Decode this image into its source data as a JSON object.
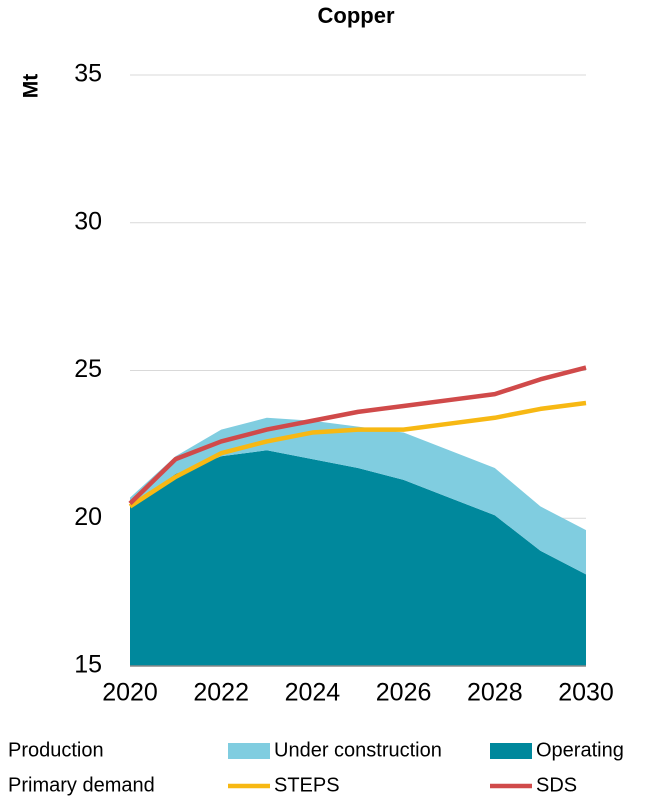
{
  "chart_data": {
    "type": "combo",
    "title": "Copper",
    "y_label": "Mt",
    "x": [
      2020,
      2021,
      2022,
      2023,
      2024,
      2025,
      2026,
      2027,
      2028,
      2029,
      2030
    ],
    "xlim": [
      2020,
      2030
    ],
    "xticks": [
      2020,
      2022,
      2024,
      2026,
      2028,
      2030
    ],
    "ylim": [
      15,
      35
    ],
    "yticks": [
      15,
      20,
      25,
      30,
      35
    ],
    "grid": true,
    "legend_groups": [
      "Production",
      "Primary demand"
    ],
    "series": [
      {
        "name": "Operating",
        "type": "area",
        "stacked": true,
        "color": "#00889c",
        "values": [
          20.4,
          21.5,
          22.1,
          22.3,
          22.0,
          21.7,
          21.3,
          20.7,
          20.1,
          18.9,
          18.1
        ]
      },
      {
        "name": "Under construction",
        "type": "area",
        "stacked": true,
        "color": "#80cde0",
        "values": [
          0.3,
          0.6,
          0.9,
          1.1,
          1.3,
          1.4,
          1.6,
          1.6,
          1.6,
          1.5,
          1.5
        ]
      },
      {
        "name": "STEPS",
        "type": "line",
        "color": "#f7b813",
        "values": [
          20.4,
          21.4,
          22.2,
          22.6,
          22.9,
          23.0,
          23.0,
          23.2,
          23.4,
          23.7,
          23.9
        ]
      },
      {
        "name": "SDS",
        "type": "line",
        "color": "#d04a4a",
        "values": [
          20.5,
          22.0,
          22.6,
          23.0,
          23.3,
          23.6,
          23.8,
          24.0,
          24.2,
          24.7,
          25.1
        ]
      }
    ]
  }
}
